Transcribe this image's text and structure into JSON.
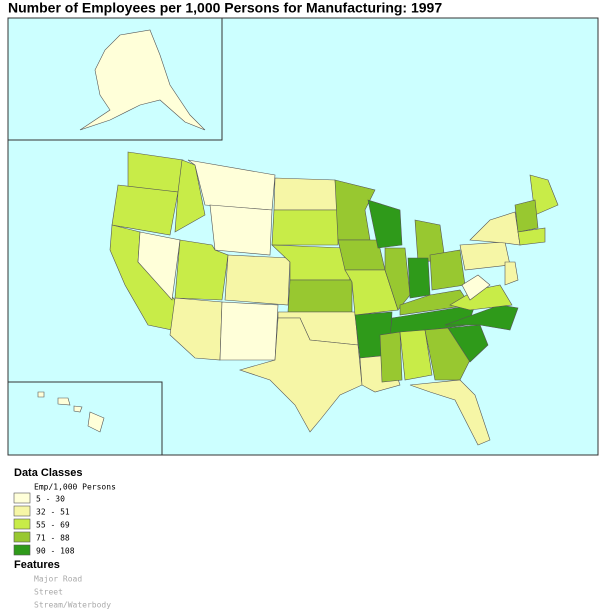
{
  "title": "Number of Employees per 1,000 Persons for Manufacturing: 1997",
  "legend": {
    "title": "Data Classes",
    "subtitle": "Emp/1,000 Persons",
    "classes": [
      {
        "label": "5 - 30",
        "color": "#ffffd9"
      },
      {
        "label": "32 - 51",
        "color": "#f6f6a6"
      },
      {
        "label": "55 - 69",
        "color": "#c8ec48"
      },
      {
        "label": "71 - 88",
        "color": "#98c830"
      },
      {
        "label": "90 - 108",
        "color": "#2f9a1a"
      }
    ]
  },
  "features": {
    "title": "Features",
    "items": [
      "Major Road",
      "Street",
      "Stream/Waterbody"
    ]
  }
}
